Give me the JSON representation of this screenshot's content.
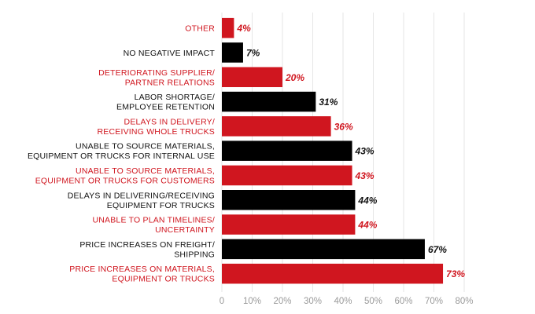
{
  "chart_data": {
    "type": "bar",
    "orientation": "horizontal",
    "title": "",
    "xlabel": "",
    "ylabel": "",
    "xlim": [
      0,
      80
    ],
    "ticks": [
      "0",
      "10%",
      "20%",
      "30%",
      "40%",
      "50%",
      "60%",
      "70%",
      "80%"
    ],
    "grid": true,
    "categories": [
      {
        "lines": [
          "OTHER"
        ],
        "value": 4,
        "label": "4%",
        "color": "#d0161f"
      },
      {
        "lines": [
          "NO NEGATIVE IMPACT"
        ],
        "value": 7,
        "label": "7%",
        "color": "#000000"
      },
      {
        "lines": [
          "DETERIORATING SUPPLIER/",
          "PARTNER RELATIONS"
        ],
        "value": 20,
        "label": "20%",
        "color": "#d0161f"
      },
      {
        "lines": [
          "LABOR SHORTAGE/",
          "EMPLOYEE RETENTION"
        ],
        "value": 31,
        "label": "31%",
        "color": "#000000"
      },
      {
        "lines": [
          "DELAYS IN DELIVERY/",
          "RECEIVING WHOLE TRUCKS"
        ],
        "value": 36,
        "label": "36%",
        "color": "#d0161f"
      },
      {
        "lines": [
          "UNABLE TO SOURCE MATERIALS,",
          "EQUIPMENT OR TRUCKS FOR INTERNAL USE"
        ],
        "value": 43,
        "label": "43%",
        "color": "#000000"
      },
      {
        "lines": [
          "UNABLE TO SOURCE MATERIALS,",
          "EQUIPMENT OR TRUCKS FOR CUSTOMERS"
        ],
        "value": 43,
        "label": "43%",
        "color": "#d0161f"
      },
      {
        "lines": [
          "DELAYS IN DELIVERING/RECEIVING",
          "EQUIPMENT FOR TRUCKS"
        ],
        "value": 44,
        "label": "44%",
        "color": "#000000"
      },
      {
        "lines": [
          "UNABLE TO PLAN TIMELINES/",
          "UNCERTAINTY"
        ],
        "value": 44,
        "label": "44%",
        "color": "#d0161f"
      },
      {
        "lines": [
          "PRICE INCREASES ON FREIGHT/",
          "SHIPPING"
        ],
        "value": 67,
        "label": "67%",
        "color": "#000000"
      },
      {
        "lines": [
          "PRICE INCREASES ON MATERIALS,",
          "EQUIPMENT OR TRUCKS"
        ],
        "value": 73,
        "label": "73%",
        "color": "#d0161f"
      }
    ]
  }
}
